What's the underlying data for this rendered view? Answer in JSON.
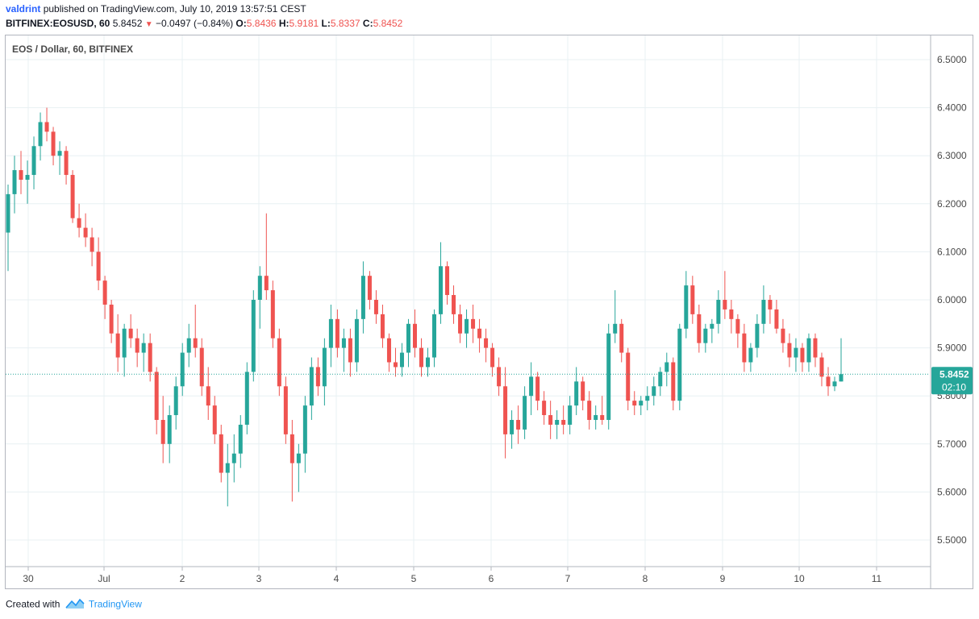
{
  "header": {
    "user": "valdrint",
    "published_text": "published on TradingView.com, July 10, 2019 13:57:51 CEST",
    "symbol": "BITFINEX:EOSUSD, 60",
    "last": "5.8452",
    "change": "−0.0497 (−0.84%)",
    "o_label": "O:",
    "o_value": "5.8436",
    "h_label": "H:",
    "h_value": "5.9181",
    "l_label": "L:",
    "l_value": "5.8337",
    "c_label": "C:",
    "c_value": "5.8452"
  },
  "chart_title": "EOS / Dollar, 60, BITFINEX",
  "footer": {
    "created": "Created with",
    "brand": "TradingView"
  },
  "colors": {
    "up": "#26a69a",
    "down": "#ef5350",
    "grid": "#e8f0f3",
    "price_line": "#26a69a"
  },
  "chart_data": {
    "type": "candlestick",
    "title": "EOS / Dollar, 60, BITFINEX",
    "ylim": [
      5.44,
      6.55
    ],
    "y_ticks": [
      "6.5000",
      "6.4000",
      "6.3000",
      "6.2000",
      "6.1000",
      "6.0000",
      "5.9000",
      "5.8000",
      "5.7000",
      "5.6000",
      "5.5000"
    ],
    "x_ticks": [
      "30",
      "Jul",
      "2",
      "3",
      "4",
      "5",
      "6",
      "7",
      "8",
      "9",
      "10",
      "11"
    ],
    "current_price": "5.8452",
    "countdown": "02:10",
    "grid": true,
    "series": [
      {
        "name": "EOSUSD",
        "points": [
          [
            6.14,
            6.24,
            6.06,
            6.22
          ],
          [
            6.22,
            6.3,
            6.18,
            6.27
          ],
          [
            6.27,
            6.31,
            6.22,
            6.25
          ],
          [
            6.25,
            6.29,
            6.2,
            6.26
          ],
          [
            6.26,
            6.34,
            6.23,
            6.32
          ],
          [
            6.32,
            6.39,
            6.29,
            6.37
          ],
          [
            6.37,
            6.4,
            6.33,
            6.35
          ],
          [
            6.35,
            6.36,
            6.28,
            6.3
          ],
          [
            6.3,
            6.33,
            6.26,
            6.31
          ],
          [
            6.31,
            6.32,
            6.24,
            6.26
          ],
          [
            6.26,
            6.27,
            6.16,
            6.17
          ],
          [
            6.17,
            6.2,
            6.13,
            6.15
          ],
          [
            6.15,
            6.18,
            6.11,
            6.13
          ],
          [
            6.13,
            6.15,
            6.07,
            6.1
          ],
          [
            6.1,
            6.13,
            6.02,
            6.04
          ],
          [
            6.04,
            6.05,
            5.96,
            5.99
          ],
          [
            5.99,
            6.0,
            5.91,
            5.93
          ],
          [
            5.93,
            5.97,
            5.85,
            5.88
          ],
          [
            5.88,
            5.95,
            5.84,
            5.94
          ],
          [
            5.94,
            5.97,
            5.9,
            5.92
          ],
          [
            5.92,
            5.94,
            5.86,
            5.89
          ],
          [
            5.89,
            5.93,
            5.85,
            5.91
          ],
          [
            5.91,
            5.93,
            5.83,
            5.85
          ],
          [
            5.85,
            5.86,
            5.72,
            5.75
          ],
          [
            5.75,
            5.8,
            5.66,
            5.7
          ],
          [
            5.7,
            5.78,
            5.66,
            5.76
          ],
          [
            5.76,
            5.84,
            5.73,
            5.82
          ],
          [
            5.82,
            5.91,
            5.8,
            5.89
          ],
          [
            5.89,
            5.95,
            5.86,
            5.92
          ],
          [
            5.92,
            5.99,
            5.88,
            5.9
          ],
          [
            5.9,
            5.92,
            5.8,
            5.82
          ],
          [
            5.82,
            5.86,
            5.75,
            5.78
          ],
          [
            5.78,
            5.8,
            5.7,
            5.72
          ],
          [
            5.72,
            5.74,
            5.62,
            5.64
          ],
          [
            5.64,
            5.7,
            5.57,
            5.66
          ],
          [
            5.66,
            5.72,
            5.62,
            5.68
          ],
          [
            5.68,
            5.76,
            5.65,
            5.74
          ],
          [
            5.74,
            5.87,
            5.72,
            5.85
          ],
          [
            5.85,
            6.02,
            5.83,
            6.0
          ],
          [
            6.0,
            6.07,
            5.94,
            6.05
          ],
          [
            6.05,
            6.18,
            6.0,
            6.02
          ],
          [
            6.02,
            6.04,
            5.9,
            5.92
          ],
          [
            5.92,
            5.94,
            5.8,
            5.82
          ],
          [
            5.82,
            5.84,
            5.7,
            5.72
          ],
          [
            5.72,
            5.75,
            5.58,
            5.66
          ],
          [
            5.66,
            5.7,
            5.6,
            5.68
          ],
          [
            5.68,
            5.8,
            5.64,
            5.78
          ],
          [
            5.78,
            5.88,
            5.75,
            5.86
          ],
          [
            5.86,
            5.88,
            5.8,
            5.82
          ],
          [
            5.82,
            5.92,
            5.78,
            5.9
          ],
          [
            5.9,
            5.99,
            5.86,
            5.96
          ],
          [
            5.96,
            5.98,
            5.88,
            5.9
          ],
          [
            5.9,
            5.94,
            5.85,
            5.92
          ],
          [
            5.92,
            5.94,
            5.84,
            5.87
          ],
          [
            5.87,
            5.98,
            5.85,
            5.96
          ],
          [
            5.96,
            6.08,
            5.93,
            6.05
          ],
          [
            6.05,
            6.06,
            5.98,
            6.0
          ],
          [
            6.0,
            6.02,
            5.95,
            5.97
          ],
          [
            5.97,
            5.99,
            5.9,
            5.92
          ],
          [
            5.92,
            5.93,
            5.85,
            5.87
          ],
          [
            5.87,
            5.9,
            5.84,
            5.86
          ],
          [
            5.86,
            5.91,
            5.84,
            5.89
          ],
          [
            5.89,
            5.96,
            5.86,
            5.95
          ],
          [
            5.95,
            5.98,
            5.88,
            5.9
          ],
          [
            5.9,
            5.92,
            5.84,
            5.86
          ],
          [
            5.86,
            5.9,
            5.84,
            5.88
          ],
          [
            5.88,
            5.98,
            5.86,
            5.97
          ],
          [
            5.97,
            6.12,
            5.95,
            6.07
          ],
          [
            6.07,
            6.08,
            5.99,
            6.01
          ],
          [
            6.01,
            6.03,
            5.95,
            5.97
          ],
          [
            5.97,
            5.99,
            5.91,
            5.93
          ],
          [
            5.93,
            5.98,
            5.9,
            5.96
          ],
          [
            5.96,
            5.99,
            5.91,
            5.94
          ],
          [
            5.94,
            5.96,
            5.89,
            5.92
          ],
          [
            5.92,
            5.94,
            5.87,
            5.9
          ],
          [
            5.9,
            5.91,
            5.84,
            5.86
          ],
          [
            5.86,
            5.88,
            5.8,
            5.82
          ],
          [
            5.82,
            5.86,
            5.67,
            5.72
          ],
          [
            5.72,
            5.77,
            5.69,
            5.75
          ],
          [
            5.75,
            5.78,
            5.7,
            5.73
          ],
          [
            5.73,
            5.82,
            5.71,
            5.8
          ],
          [
            5.8,
            5.87,
            5.76,
            5.84
          ],
          [
            5.84,
            5.85,
            5.77,
            5.79
          ],
          [
            5.79,
            5.81,
            5.74,
            5.76
          ],
          [
            5.76,
            5.79,
            5.71,
            5.74
          ],
          [
            5.74,
            5.77,
            5.71,
            5.75
          ],
          [
            5.75,
            5.78,
            5.72,
            5.74
          ],
          [
            5.74,
            5.8,
            5.72,
            5.78
          ],
          [
            5.78,
            5.86,
            5.76,
            5.83
          ],
          [
            5.83,
            5.84,
            5.77,
            5.79
          ],
          [
            5.79,
            5.81,
            5.73,
            5.75
          ],
          [
            5.75,
            5.78,
            5.73,
            5.76
          ],
          [
            5.76,
            5.8,
            5.74,
            5.75
          ],
          [
            5.75,
            5.95,
            5.73,
            5.93
          ],
          [
            5.93,
            6.02,
            5.91,
            5.95
          ],
          [
            5.95,
            5.96,
            5.87,
            5.89
          ],
          [
            5.89,
            5.9,
            5.77,
            5.79
          ],
          [
            5.79,
            5.81,
            5.76,
            5.78
          ],
          [
            5.78,
            5.8,
            5.76,
            5.79
          ],
          [
            5.79,
            5.82,
            5.77,
            5.8
          ],
          [
            5.8,
            5.84,
            5.78,
            5.82
          ],
          [
            5.82,
            5.86,
            5.8,
            5.85
          ],
          [
            5.85,
            5.89,
            5.82,
            5.87
          ],
          [
            5.87,
            5.88,
            5.77,
            5.79
          ],
          [
            5.79,
            5.95,
            5.77,
            5.94
          ],
          [
            5.94,
            6.06,
            5.92,
            6.03
          ],
          [
            6.03,
            6.05,
            5.95,
            5.97
          ],
          [
            5.97,
            5.99,
            5.89,
            5.91
          ],
          [
            5.91,
            5.95,
            5.89,
            5.94
          ],
          [
            5.94,
            5.96,
            5.91,
            5.95
          ],
          [
            5.95,
            6.02,
            5.93,
            6.0
          ],
          [
            6.0,
            6.06,
            5.96,
            5.98
          ],
          [
            5.98,
            6.0,
            5.93,
            5.96
          ],
          [
            5.96,
            5.97,
            5.9,
            5.93
          ],
          [
            5.93,
            5.95,
            5.85,
            5.87
          ],
          [
            5.87,
            5.91,
            5.85,
            5.9
          ],
          [
            5.9,
            5.97,
            5.88,
            5.95
          ],
          [
            5.95,
            6.03,
            5.93,
            6.0
          ],
          [
            6.0,
            6.01,
            5.95,
            5.98
          ],
          [
            5.98,
            6.0,
            5.93,
            5.94
          ],
          [
            5.94,
            5.96,
            5.89,
            5.91
          ],
          [
            5.91,
            5.93,
            5.86,
            5.88
          ],
          [
            5.88,
            5.92,
            5.85,
            5.9
          ],
          [
            5.9,
            5.91,
            5.85,
            5.87
          ],
          [
            5.87,
            5.93,
            5.85,
            5.92
          ],
          [
            5.92,
            5.93,
            5.86,
            5.88
          ],
          [
            5.88,
            5.89,
            5.82,
            5.84
          ],
          [
            5.84,
            5.86,
            5.8,
            5.82
          ],
          [
            5.82,
            5.84,
            5.81,
            5.83
          ],
          [
            5.83,
            5.92,
            5.83,
            5.8452
          ]
        ]
      }
    ]
  }
}
